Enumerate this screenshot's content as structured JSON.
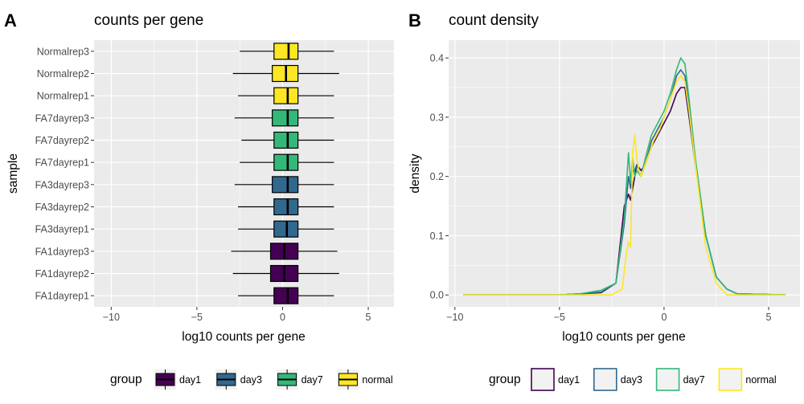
{
  "chart_data": [
    {
      "panel": "A",
      "type": "boxplot",
      "title": "counts per gene",
      "xlabel": "log10 counts per gene",
      "ylabel": "sample",
      "xlim": [
        -11,
        6.5
      ],
      "xticks": [
        -10,
        -5,
        0,
        5
      ],
      "grid": true,
      "legend": {
        "title": "group",
        "position": "bottom",
        "entries": [
          {
            "label": "day1",
            "color": "#440154"
          },
          {
            "label": "day3",
            "color": "#31688E"
          },
          {
            "label": "day7",
            "color": "#35B779"
          },
          {
            "label": "normal",
            "color": "#FDE725"
          }
        ]
      },
      "samples": [
        {
          "name": "Normalrep3",
          "group": "normal",
          "whisker_low": -2.5,
          "q1": -0.5,
          "median": 0.35,
          "q3": 0.9,
          "whisker_high": 3.0
        },
        {
          "name": "Normalrep2",
          "group": "normal",
          "whisker_low": -2.9,
          "q1": -0.6,
          "median": 0.2,
          "q3": 0.9,
          "whisker_high": 3.3
        },
        {
          "name": "Normalrep1",
          "group": "normal",
          "whisker_low": -2.6,
          "q1": -0.5,
          "median": 0.3,
          "q3": 0.9,
          "whisker_high": 3.0
        },
        {
          "name": "FA7dayrep3",
          "group": "day7",
          "whisker_low": -2.8,
          "q1": -0.6,
          "median": 0.3,
          "q3": 0.9,
          "whisker_high": 3.0
        },
        {
          "name": "FA7dayrep2",
          "group": "day7",
          "whisker_low": -2.4,
          "q1": -0.5,
          "median": 0.3,
          "q3": 0.9,
          "whisker_high": 3.0
        },
        {
          "name": "FA7dayrep1",
          "group": "day7",
          "whisker_low": -2.5,
          "q1": -0.5,
          "median": 0.3,
          "q3": 0.9,
          "whisker_high": 3.0
        },
        {
          "name": "FA3dayrep3",
          "group": "day3",
          "whisker_low": -2.8,
          "q1": -0.6,
          "median": 0.3,
          "q3": 0.9,
          "whisker_high": 3.0
        },
        {
          "name": "FA3dayrep2",
          "group": "day3",
          "whisker_low": -2.6,
          "q1": -0.5,
          "median": 0.3,
          "q3": 0.9,
          "whisker_high": 3.0
        },
        {
          "name": "FA3dayrep1",
          "group": "day3",
          "whisker_low": -2.6,
          "q1": -0.5,
          "median": 0.25,
          "q3": 0.9,
          "whisker_high": 3.0
        },
        {
          "name": "FA1dayrep3",
          "group": "day1",
          "whisker_low": -3.0,
          "q1": -0.7,
          "median": 0.1,
          "q3": 0.9,
          "whisker_high": 3.2
        },
        {
          "name": "FA1dayrep2",
          "group": "day1",
          "whisker_low": -2.9,
          "q1": -0.7,
          "median": 0.1,
          "q3": 0.9,
          "whisker_high": 3.3
        },
        {
          "name": "FA1dayrep1",
          "group": "day1",
          "whisker_low": -2.6,
          "q1": -0.5,
          "median": 0.3,
          "q3": 0.9,
          "whisker_high": 3.0
        }
      ]
    },
    {
      "panel": "B",
      "type": "line",
      "title": "count density",
      "xlabel": "log10 counts per gene",
      "ylabel": "density",
      "xlim": [
        -10.3,
        6.5
      ],
      "ylim": [
        -0.02,
        0.43
      ],
      "xticks": [
        -10,
        -5,
        0,
        5
      ],
      "yticks": [
        0.0,
        0.1,
        0.2,
        0.3,
        0.4
      ],
      "ytick_labels": [
        "0.0",
        "0.1",
        "0.2",
        "0.3",
        "0.4"
      ],
      "grid": true,
      "legend": {
        "title": "group",
        "position": "bottom",
        "entries": [
          {
            "label": "day1",
            "color": "#440154"
          },
          {
            "label": "day3",
            "color": "#31688E"
          },
          {
            "label": "day7",
            "color": "#35B779"
          },
          {
            "label": "normal",
            "color": "#FDE725"
          }
        ]
      },
      "series": [
        {
          "name": "day1",
          "color": "#440154",
          "x": [
            -9.6,
            -5.0,
            -4.0,
            -3.0,
            -2.3,
            -1.9,
            -1.7,
            -1.6,
            -1.5,
            -1.4,
            -1.3,
            -1.1,
            -0.9,
            -0.6,
            -0.3,
            0.0,
            0.3,
            0.6,
            0.8,
            1.0,
            1.2,
            1.5,
            2.0,
            2.5,
            3.0,
            3.5,
            5.8
          ],
          "y": [
            0,
            0,
            0.002,
            0.004,
            0.02,
            0.15,
            0.17,
            0.16,
            0.18,
            0.2,
            0.22,
            0.21,
            0.22,
            0.25,
            0.27,
            0.29,
            0.31,
            0.34,
            0.35,
            0.35,
            0.3,
            0.22,
            0.1,
            0.03,
            0.01,
            0.002,
            0
          ]
        },
        {
          "name": "day3",
          "color": "#31688E",
          "x": [
            -9.6,
            -5.0,
            -4.0,
            -3.0,
            -2.3,
            -1.9,
            -1.7,
            -1.6,
            -1.5,
            -1.4,
            -1.3,
            -1.1,
            -0.9,
            -0.6,
            -0.3,
            0.0,
            0.3,
            0.6,
            0.8,
            1.0,
            1.2,
            1.5,
            2.0,
            2.5,
            3.0,
            3.5,
            5.8
          ],
          "y": [
            0,
            0,
            0.002,
            0.005,
            0.02,
            0.12,
            0.2,
            0.18,
            0.21,
            0.21,
            0.22,
            0.2,
            0.22,
            0.26,
            0.28,
            0.3,
            0.33,
            0.37,
            0.38,
            0.37,
            0.32,
            0.22,
            0.1,
            0.03,
            0.01,
            0.002,
            0
          ]
        },
        {
          "name": "day7",
          "color": "#35B779",
          "x": [
            -9.6,
            -5.0,
            -4.0,
            -3.0,
            -2.3,
            -1.9,
            -1.7,
            -1.6,
            -1.5,
            -1.4,
            -1.3,
            -1.1,
            -0.9,
            -0.6,
            -0.3,
            0.0,
            0.3,
            0.6,
            0.8,
            1.0,
            1.2,
            1.5,
            2.0,
            2.5,
            3.0,
            3.5,
            5.8
          ],
          "y": [
            0,
            0,
            0.002,
            0.008,
            0.02,
            0.13,
            0.24,
            0.19,
            0.23,
            0.2,
            0.21,
            0.2,
            0.23,
            0.27,
            0.29,
            0.31,
            0.34,
            0.38,
            0.4,
            0.39,
            0.33,
            0.23,
            0.1,
            0.03,
            0.01,
            0.002,
            0
          ]
        },
        {
          "name": "normal",
          "color": "#FDE725",
          "x": [
            -9.6,
            -3.0,
            -2.5,
            -2.0,
            -1.8,
            -1.7,
            -1.6,
            -1.5,
            -1.4,
            -1.3,
            -1.2,
            -1.1,
            -1.0,
            -0.8,
            -0.5,
            -0.2,
            0.0,
            0.3,
            0.6,
            0.8,
            1.0,
            1.2,
            1.5,
            2.0,
            2.5,
            3.0,
            5.8
          ],
          "y": [
            0,
            0,
            0,
            0.01,
            0.07,
            0.09,
            0.08,
            0.24,
            0.27,
            0.23,
            0.21,
            0.2,
            0.21,
            0.23,
            0.26,
            0.28,
            0.3,
            0.33,
            0.36,
            0.37,
            0.36,
            0.31,
            0.22,
            0.08,
            0.02,
            0,
            0
          ]
        }
      ]
    }
  ]
}
